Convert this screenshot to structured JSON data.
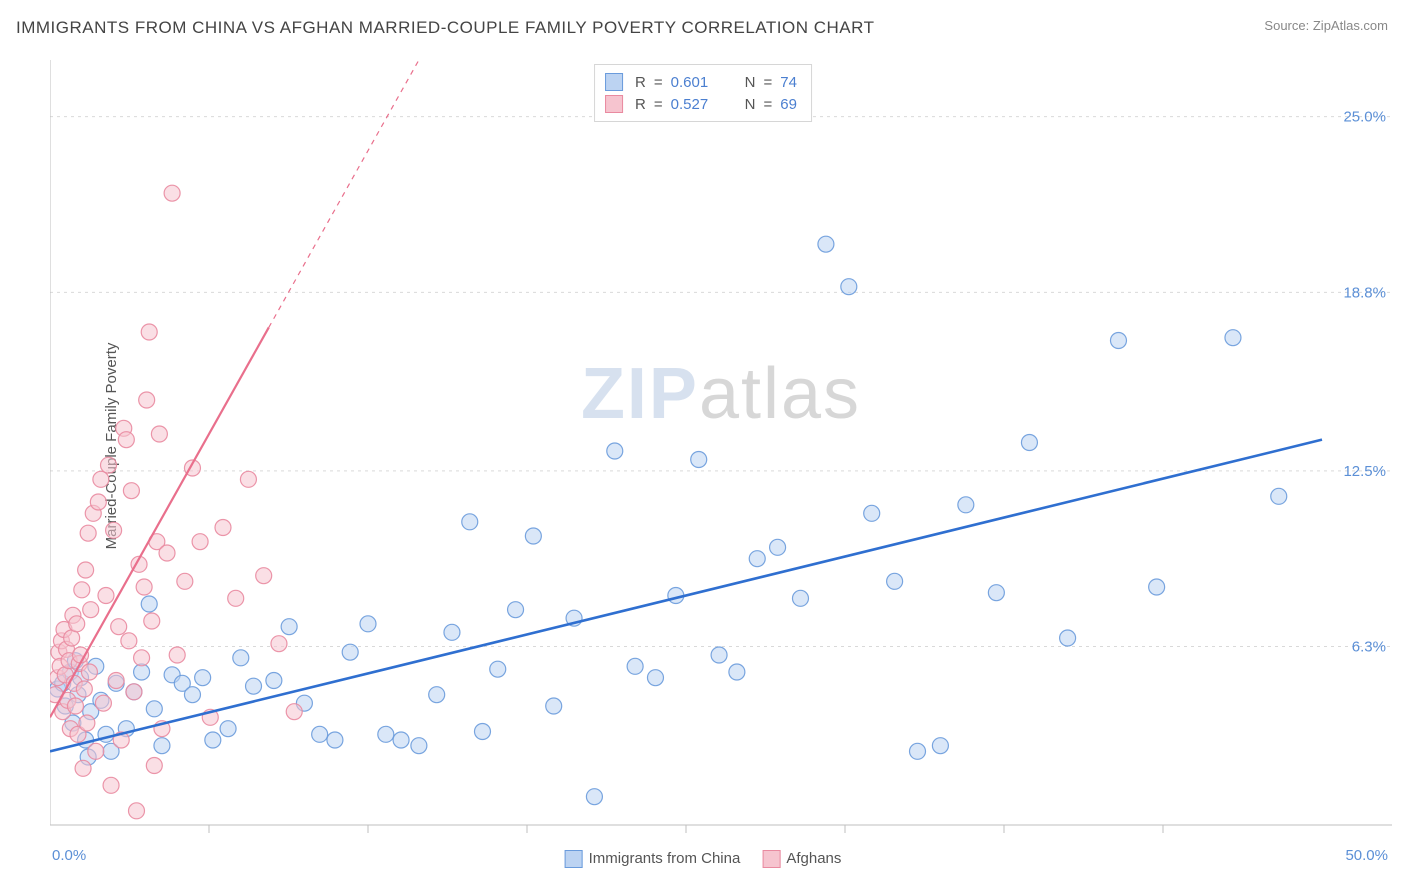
{
  "title": "IMMIGRANTS FROM CHINA VS AFGHAN MARRIED-COUPLE FAMILY POVERTY CORRELATION CHART",
  "source_label": "Source:",
  "source_value": "ZipAtlas.com",
  "watermark_a": "ZIP",
  "watermark_b": "atlas",
  "chart": {
    "type": "scatter",
    "background_color": "#ffffff",
    "axis_color": "#bfbfbf",
    "grid_color": "#d9d9d9",
    "grid_dash": "3,4",
    "tick_color": "#5b8fd6",
    "text_color": "#555555",
    "label_fontsize": 15,
    "title_fontsize": 17,
    "xlim": [
      0,
      50
    ],
    "ylim": [
      0,
      27
    ],
    "ylabel": "Married-Couple Family Poverty",
    "x_tick_left": "0.0%",
    "x_tick_right": "50.0%",
    "y_ticks": [
      {
        "v": 6.3,
        "label": "6.3%"
      },
      {
        "v": 12.5,
        "label": "12.5%"
      },
      {
        "v": 18.8,
        "label": "18.8%"
      },
      {
        "v": 25.0,
        "label": "25.0%"
      }
    ],
    "x_minor_ticks": [
      6.25,
      12.5,
      18.75,
      25,
      31.25,
      37.5,
      43.75
    ],
    "marker_radius": 8,
    "marker_opacity": 0.55,
    "marker_stroke_width": 1.2,
    "series": [
      {
        "name": "Immigrants from China",
        "color_fill": "#bcd3f2",
        "color_stroke": "#6a9bdc",
        "line_color": "#2f6fd0",
        "line_width": 2.6,
        "R": "0.601",
        "N": "74",
        "trend": {
          "x1": 0,
          "y1": 2.6,
          "x2": 50,
          "y2": 13.6,
          "dash_after_x": null
        },
        "points": [
          [
            0.3,
            4.8
          ],
          [
            0.5,
            5.0
          ],
          [
            0.6,
            4.2
          ],
          [
            0.8,
            5.4
          ],
          [
            0.9,
            3.6
          ],
          [
            1.0,
            5.8
          ],
          [
            1.1,
            4.6
          ],
          [
            1.2,
            5.2
          ],
          [
            1.4,
            3.0
          ],
          [
            1.5,
            2.4
          ],
          [
            1.6,
            4.0
          ],
          [
            1.8,
            5.6
          ],
          [
            2.0,
            4.4
          ],
          [
            2.2,
            3.2
          ],
          [
            2.4,
            2.6
          ],
          [
            2.6,
            5.0
          ],
          [
            3.0,
            3.4
          ],
          [
            3.3,
            4.7
          ],
          [
            3.6,
            5.4
          ],
          [
            3.9,
            7.8
          ],
          [
            4.1,
            4.1
          ],
          [
            4.4,
            2.8
          ],
          [
            4.8,
            5.3
          ],
          [
            5.2,
            5.0
          ],
          [
            5.6,
            4.6
          ],
          [
            6.0,
            5.2
          ],
          [
            6.4,
            3.0
          ],
          [
            7.0,
            3.4
          ],
          [
            7.5,
            5.9
          ],
          [
            8.0,
            4.9
          ],
          [
            8.8,
            5.1
          ],
          [
            9.4,
            7.0
          ],
          [
            10.0,
            4.3
          ],
          [
            10.6,
            3.2
          ],
          [
            11.2,
            3.0
          ],
          [
            11.8,
            6.1
          ],
          [
            12.5,
            7.1
          ],
          [
            13.2,
            3.2
          ],
          [
            13.8,
            3.0
          ],
          [
            14.5,
            2.8
          ],
          [
            15.2,
            4.6
          ],
          [
            15.8,
            6.8
          ],
          [
            16.5,
            10.7
          ],
          [
            17.0,
            3.3
          ],
          [
            17.6,
            5.5
          ],
          [
            18.3,
            7.6
          ],
          [
            19.0,
            10.2
          ],
          [
            19.8,
            4.2
          ],
          [
            20.6,
            7.3
          ],
          [
            21.4,
            1.0
          ],
          [
            22.2,
            13.2
          ],
          [
            23.0,
            5.6
          ],
          [
            23.8,
            5.2
          ],
          [
            24.6,
            8.1
          ],
          [
            25.5,
            12.9
          ],
          [
            26.3,
            6.0
          ],
          [
            27.0,
            5.4
          ],
          [
            27.8,
            9.4
          ],
          [
            28.6,
            9.8
          ],
          [
            29.5,
            8.0
          ],
          [
            30.5,
            20.5
          ],
          [
            31.4,
            19.0
          ],
          [
            32.3,
            11.0
          ],
          [
            33.2,
            8.6
          ],
          [
            34.1,
            2.6
          ],
          [
            35.0,
            2.8
          ],
          [
            36.0,
            11.3
          ],
          [
            37.2,
            8.2
          ],
          [
            38.5,
            13.5
          ],
          [
            40.0,
            6.6
          ],
          [
            42.0,
            17.1
          ],
          [
            43.5,
            8.4
          ],
          [
            46.5,
            17.2
          ],
          [
            48.3,
            11.6
          ]
        ]
      },
      {
        "name": "Afghans",
        "color_fill": "#f6c4cf",
        "color_stroke": "#e98aa0",
        "line_color": "#e96f8c",
        "line_width": 2.2,
        "R": "0.527",
        "N": "69",
        "trend": {
          "x1": 0,
          "y1": 3.8,
          "x2": 14.5,
          "y2": 27.0,
          "dash_after_x": 8.6
        },
        "points": [
          [
            0.2,
            4.6
          ],
          [
            0.3,
            5.2
          ],
          [
            0.35,
            6.1
          ],
          [
            0.4,
            5.6
          ],
          [
            0.45,
            6.5
          ],
          [
            0.5,
            4.0
          ],
          [
            0.55,
            6.9
          ],
          [
            0.6,
            5.3
          ],
          [
            0.65,
            6.2
          ],
          [
            0.7,
            4.4
          ],
          [
            0.75,
            5.8
          ],
          [
            0.8,
            3.4
          ],
          [
            0.85,
            6.6
          ],
          [
            0.9,
            7.4
          ],
          [
            0.95,
            5.0
          ],
          [
            1.0,
            4.2
          ],
          [
            1.05,
            7.1
          ],
          [
            1.1,
            3.2
          ],
          [
            1.15,
            5.7
          ],
          [
            1.2,
            6.0
          ],
          [
            1.25,
            8.3
          ],
          [
            1.3,
            2.0
          ],
          [
            1.35,
            4.8
          ],
          [
            1.4,
            9.0
          ],
          [
            1.45,
            3.6
          ],
          [
            1.5,
            10.3
          ],
          [
            1.55,
            5.4
          ],
          [
            1.6,
            7.6
          ],
          [
            1.7,
            11.0
          ],
          [
            1.8,
            2.6
          ],
          [
            1.9,
            11.4
          ],
          [
            2.0,
            12.2
          ],
          [
            2.1,
            4.3
          ],
          [
            2.2,
            8.1
          ],
          [
            2.3,
            12.7
          ],
          [
            2.4,
            1.4
          ],
          [
            2.5,
            10.4
          ],
          [
            2.6,
            5.1
          ],
          [
            2.7,
            7.0
          ],
          [
            2.8,
            3.0
          ],
          [
            2.9,
            14.0
          ],
          [
            3.0,
            13.6
          ],
          [
            3.1,
            6.5
          ],
          [
            3.2,
            11.8
          ],
          [
            3.3,
            4.7
          ],
          [
            3.4,
            0.5
          ],
          [
            3.5,
            9.2
          ],
          [
            3.6,
            5.9
          ],
          [
            3.7,
            8.4
          ],
          [
            3.8,
            15.0
          ],
          [
            3.9,
            17.4
          ],
          [
            4.0,
            7.2
          ],
          [
            4.1,
            2.1
          ],
          [
            4.2,
            10.0
          ],
          [
            4.3,
            13.8
          ],
          [
            4.4,
            3.4
          ],
          [
            4.6,
            9.6
          ],
          [
            4.8,
            22.3
          ],
          [
            5.0,
            6.0
          ],
          [
            5.3,
            8.6
          ],
          [
            5.6,
            12.6
          ],
          [
            5.9,
            10.0
          ],
          [
            6.3,
            3.8
          ],
          [
            6.8,
            10.5
          ],
          [
            7.3,
            8.0
          ],
          [
            7.8,
            12.2
          ],
          [
            8.4,
            8.8
          ],
          [
            9.0,
            6.4
          ],
          [
            9.6,
            4.0
          ]
        ]
      }
    ],
    "legend_top": {
      "R_label": "R",
      "eq": "=",
      "N_label": "N"
    },
    "legend_bottom": [
      {
        "series": 0
      },
      {
        "series": 1
      }
    ]
  }
}
